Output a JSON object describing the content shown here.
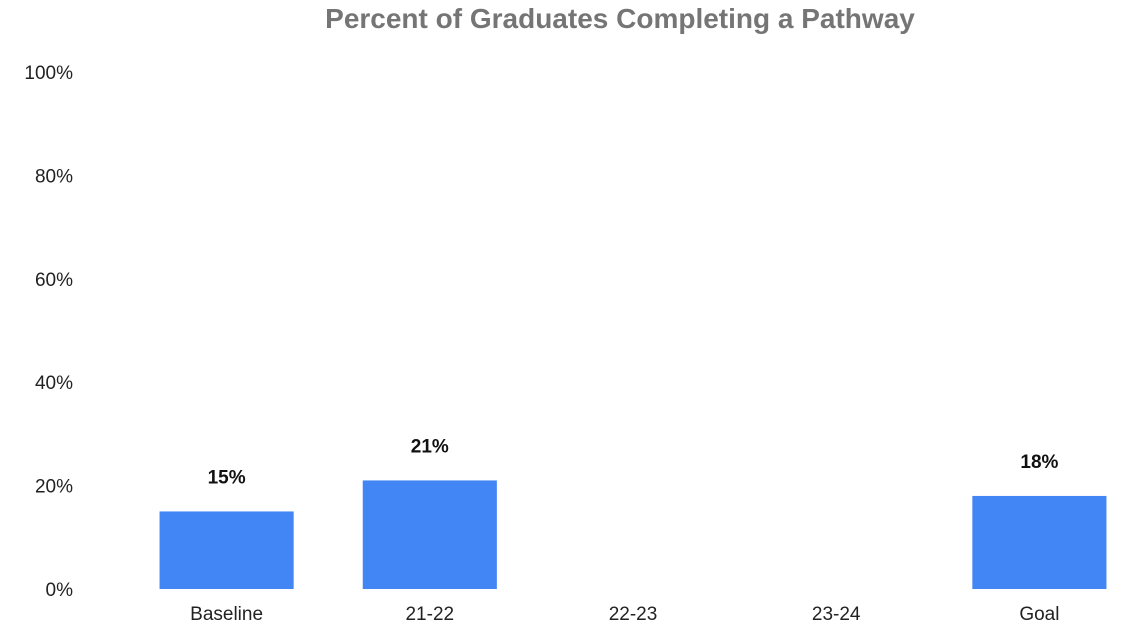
{
  "chart_data": {
    "type": "bar",
    "title": "Percent of Graduates Completing a Pathway",
    "xlabel": "",
    "ylabel": "",
    "categories": [
      "Baseline",
      "21-22",
      "22-23",
      "23-24",
      "Goal"
    ],
    "values": [
      15,
      21,
      null,
      null,
      18
    ],
    "data_labels": [
      "15%",
      "21%",
      "",
      "",
      "18%"
    ],
    "ylim": [
      0,
      100
    ],
    "yticks": [
      0,
      20,
      40,
      60,
      80,
      100
    ],
    "ytick_labels": [
      "0%",
      "20%",
      "40%",
      "60%",
      "80%",
      "100%"
    ],
    "grid": false,
    "legend": "none",
    "bar_color": "#4285F4"
  }
}
